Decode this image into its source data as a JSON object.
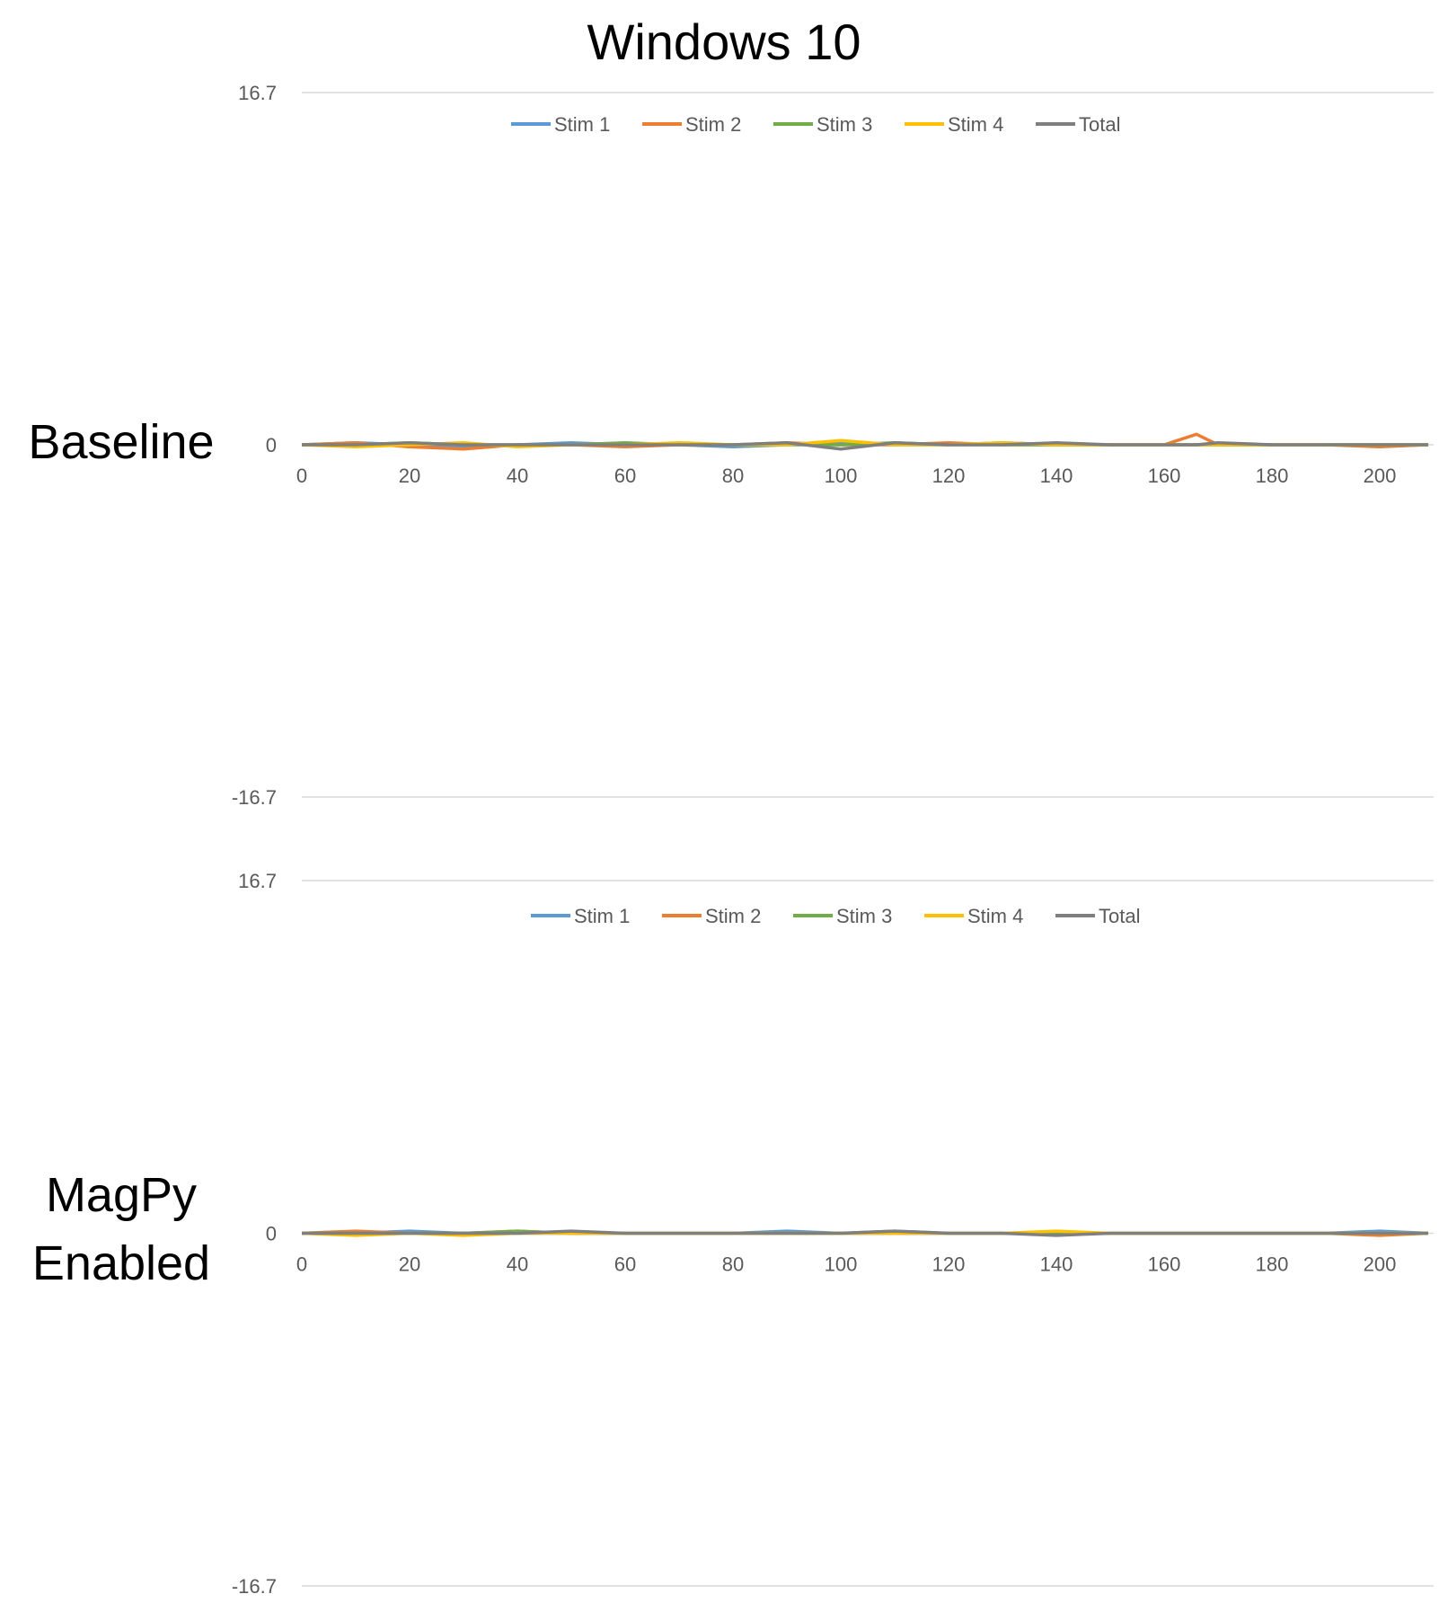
{
  "figure": {
    "title": "Windows 10"
  },
  "row_labels": [
    {
      "lines": [
        "Baseline"
      ]
    },
    {
      "lines": [
        "MagPy",
        "Enabled"
      ]
    }
  ],
  "chart_data": [
    {
      "type": "line",
      "xlim": [
        0,
        210
      ],
      "ylim": [
        -16.7,
        16.7
      ],
      "x_ticks": [
        0,
        20,
        40,
        60,
        80,
        100,
        120,
        140,
        160,
        180,
        200
      ],
      "y_ticks": [
        16.7,
        0,
        -16.7
      ],
      "y_tick_labels": [
        "16.7",
        "0",
        "-16.7"
      ],
      "legend_position": "top",
      "x": [
        0,
        10,
        20,
        30,
        40,
        50,
        60,
        70,
        80,
        90,
        100,
        110,
        120,
        130,
        140,
        150,
        160,
        166,
        170,
        180,
        190,
        200,
        209
      ],
      "series": [
        {
          "name": "Stim 1",
          "color": "#5B9BD5",
          "values": [
            0,
            0.1,
            0,
            -0.1,
            0,
            0.1,
            0,
            0,
            -0.1,
            0,
            0.1,
            0,
            0,
            0.1,
            0,
            0,
            0,
            0,
            0,
            0,
            0,
            0,
            0
          ]
        },
        {
          "name": "Stim 2",
          "color": "#ED7D31",
          "values": [
            0,
            0.1,
            -0.1,
            -0.2,
            0,
            0,
            -0.1,
            0,
            0,
            0.1,
            0,
            0,
            0.1,
            0,
            0,
            0,
            0,
            0.5,
            0,
            0,
            0,
            -0.1,
            0
          ]
        },
        {
          "name": "Stim 3",
          "color": "#70AD47",
          "values": [
            0,
            0,
            0.1,
            0,
            0,
            0,
            0.1,
            0,
            0,
            0,
            0,
            0.1,
            0,
            0,
            0,
            0,
            0,
            0,
            0,
            0,
            0,
            0,
            0
          ]
        },
        {
          "name": "Stim 4",
          "color": "#FFC000",
          "values": [
            0,
            -0.1,
            0,
            0.1,
            -0.1,
            0,
            0,
            0.1,
            0,
            0,
            0.2,
            0,
            0,
            0.1,
            0,
            0,
            0,
            0,
            0,
            0,
            0,
            0,
            0
          ]
        },
        {
          "name": "Total",
          "color": "#7F7F7F",
          "values": [
            0,
            0,
            0.1,
            0,
            0,
            0,
            0,
            0,
            0,
            0.1,
            -0.2,
            0.1,
            0,
            0,
            0.1,
            0,
            0,
            0,
            0.1,
            0,
            0,
            0,
            0
          ]
        }
      ]
    },
    {
      "type": "line",
      "xlim": [
        0,
        210
      ],
      "ylim": [
        -16.7,
        16.7
      ],
      "x_ticks": [
        0,
        20,
        40,
        60,
        80,
        100,
        120,
        140,
        160,
        180,
        200
      ],
      "y_ticks": [
        16.7,
        0,
        -16.7
      ],
      "y_tick_labels": [
        "16.7",
        "0",
        "-16.7"
      ],
      "legend_position": "top",
      "x": [
        0,
        10,
        20,
        30,
        40,
        50,
        60,
        70,
        80,
        90,
        100,
        110,
        120,
        130,
        140,
        150,
        160,
        170,
        180,
        190,
        200,
        209
      ],
      "series": [
        {
          "name": "Stim 1",
          "color": "#5B9BD5",
          "values": [
            0,
            0,
            0.1,
            0,
            0,
            0,
            0,
            0,
            0,
            0.1,
            0,
            0,
            0,
            0,
            0,
            0,
            0,
            0,
            0,
            0,
            0.1,
            0
          ]
        },
        {
          "name": "Stim 2",
          "color": "#ED7D31",
          "values": [
            0,
            0.1,
            0,
            0,
            0.1,
            0,
            0,
            0,
            0,
            0,
            0,
            0,
            0,
            0,
            0,
            0,
            0,
            0,
            0,
            0,
            -0.1,
            0
          ]
        },
        {
          "name": "Stim 3",
          "color": "#70AD47",
          "values": [
            0,
            0,
            0,
            0,
            0.1,
            0,
            0,
            0,
            0,
            0,
            0,
            0.1,
            0,
            0,
            0,
            0,
            0,
            0,
            0,
            0,
            0,
            0
          ]
        },
        {
          "name": "Stim 4",
          "color": "#FFC000",
          "values": [
            0,
            -0.1,
            0,
            -0.1,
            0,
            0,
            0,
            0,
            0,
            0,
            0,
            0,
            0,
            0,
            0.1,
            0,
            0,
            0,
            0,
            0,
            0,
            0
          ]
        },
        {
          "name": "Total",
          "color": "#7F7F7F",
          "values": [
            0,
            0,
            0,
            0,
            0,
            0.1,
            0,
            0,
            0,
            0,
            0,
            0.1,
            0,
            0,
            -0.1,
            0,
            0,
            0,
            0,
            0,
            0,
            0
          ]
        }
      ]
    }
  ]
}
